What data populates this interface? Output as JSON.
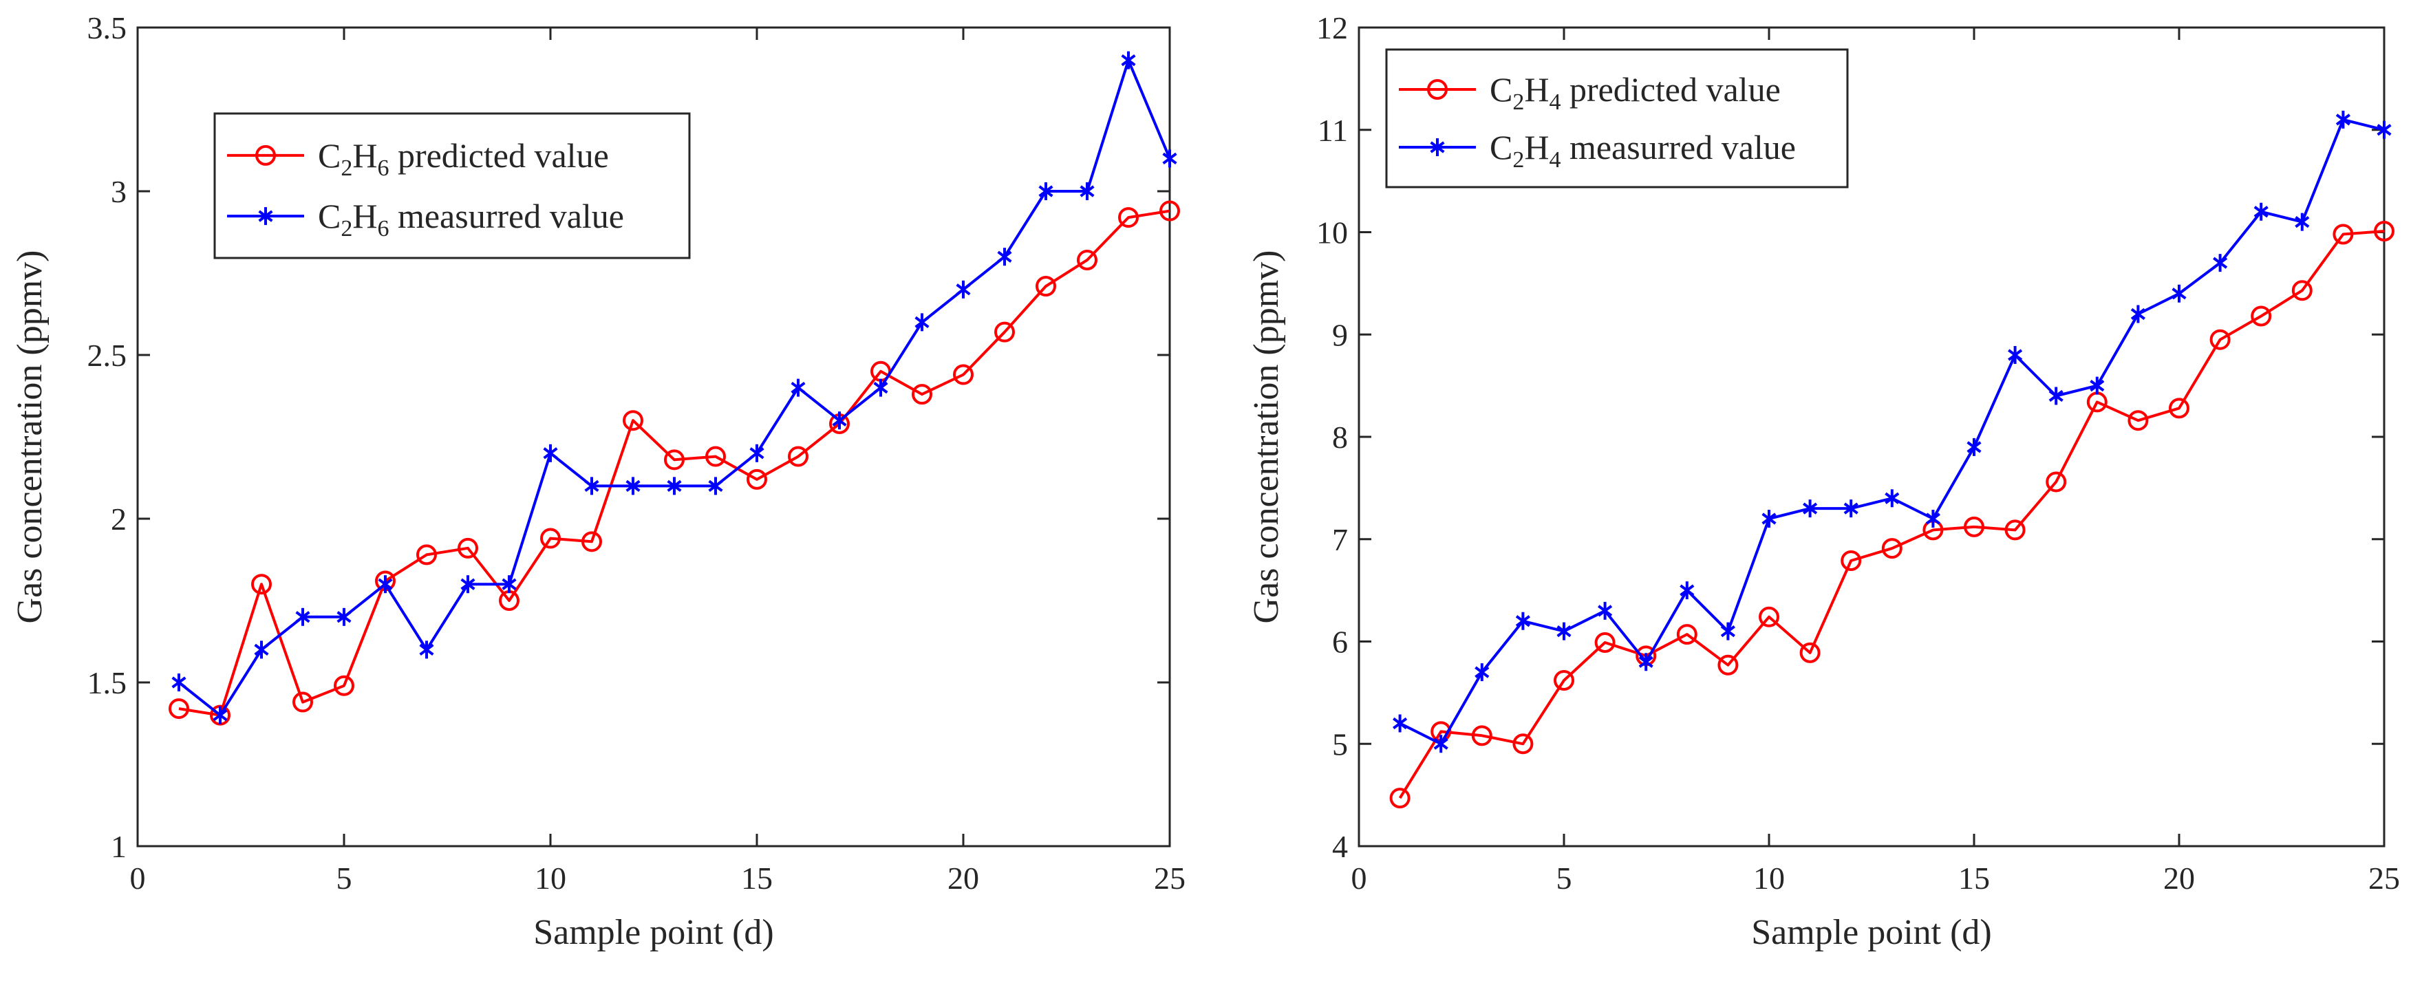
{
  "chart_data": [
    {
      "type": "line",
      "xlabel": "Sample point (d)",
      "ylabel": "Gas concentration (ppmv)",
      "xlim": [
        0,
        25
      ],
      "ylim": [
        1,
        3.5
      ],
      "xticks": [
        "0",
        "5",
        "10",
        "15",
        "20",
        "25"
      ],
      "yticks": [
        "1",
        "1.5",
        "2",
        "2.5",
        "3",
        "3.5"
      ],
      "grid": false,
      "legend_position": "top-left",
      "x": [
        1,
        2,
        3,
        4,
        5,
        6,
        7,
        8,
        9,
        10,
        11,
        12,
        13,
        14,
        15,
        16,
        17,
        18,
        19,
        20,
        21,
        22,
        23,
        24,
        25
      ],
      "series": [
        {
          "name_parts": {
            "a": "C",
            "a_sub": "2",
            "b": "H",
            "b_sub": "6",
            "rest": " predicted value"
          },
          "color": "#ff0000",
          "marker": "circle",
          "values": [
            1.42,
            1.4,
            1.8,
            1.44,
            1.49,
            1.81,
            1.89,
            1.91,
            1.75,
            1.94,
            1.93,
            2.3,
            2.18,
            2.19,
            2.12,
            2.19,
            2.29,
            2.45,
            2.38,
            2.44,
            2.57,
            2.71,
            2.79,
            2.92,
            2.94
          ]
        },
        {
          "name_parts": {
            "a": "C",
            "a_sub": "2",
            "b": "H",
            "b_sub": "6",
            "rest": " measurred value"
          },
          "color": "#0000ff",
          "marker": "asterisk",
          "values": [
            1.5,
            1.4,
            1.6,
            1.7,
            1.7,
            1.8,
            1.6,
            1.8,
            1.8,
            2.2,
            2.1,
            2.1,
            2.1,
            2.1,
            2.2,
            2.4,
            2.3,
            2.4,
            2.6,
            2.7,
            2.8,
            3.0,
            3.0,
            3.4,
            3.1
          ]
        }
      ]
    },
    {
      "type": "line",
      "xlabel": "Sample point (d)",
      "ylabel": "Gas concentration (ppmv)",
      "xlim": [
        0,
        25
      ],
      "ylim": [
        4,
        12
      ],
      "xticks": [
        "0",
        "5",
        "10",
        "15",
        "20",
        "25"
      ],
      "yticks": [
        "4",
        "5",
        "6",
        "7",
        "8",
        "9",
        "10",
        "11",
        "12"
      ],
      "grid": false,
      "legend_position": "top-left",
      "x": [
        1,
        2,
        3,
        4,
        5,
        6,
        7,
        8,
        9,
        10,
        11,
        12,
        13,
        14,
        15,
        16,
        17,
        18,
        19,
        20,
        21,
        22,
        23,
        24,
        25
      ],
      "series": [
        {
          "name_parts": {
            "a": "C",
            "a_sub": "2",
            "b": "H",
            "b_sub": "4",
            "rest": " predicted value"
          },
          "color": "#ff0000",
          "marker": "circle",
          "values": [
            4.47,
            5.12,
            5.08,
            5.0,
            5.62,
            5.99,
            5.86,
            6.07,
            5.77,
            6.24,
            5.89,
            6.79,
            6.91,
            7.09,
            7.12,
            7.09,
            7.56,
            8.34,
            8.16,
            8.28,
            8.95,
            9.18,
            9.43,
            9.98,
            10.01
          ]
        },
        {
          "name_parts": {
            "a": "C",
            "a_sub": "2",
            "b": "H",
            "b_sub": "4",
            "rest": " measurred value"
          },
          "color": "#0000ff",
          "marker": "asterisk",
          "values": [
            5.2,
            5.0,
            5.7,
            6.2,
            6.1,
            6.3,
            5.8,
            6.5,
            6.1,
            7.2,
            7.3,
            7.3,
            7.4,
            7.2,
            7.9,
            8.8,
            8.4,
            8.5,
            9.2,
            9.4,
            9.7,
            10.2,
            10.1,
            11.1,
            11.0
          ]
        }
      ]
    }
  ]
}
